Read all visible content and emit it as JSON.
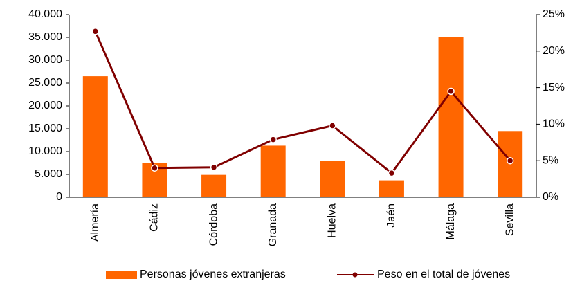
{
  "chart_data": {
    "type": "bar",
    "categories": [
      "Almería",
      "Cádiz",
      "Córdoba",
      "Granada",
      "Huelva",
      "Jaén",
      "Málaga",
      "Sevilla"
    ],
    "series": [
      {
        "name": "Personas jóvenes extranjeras",
        "color": "#ff6600",
        "type": "bar",
        "values": [
          26500,
          7500,
          4900,
          11300,
          8000,
          3700,
          35000,
          14500
        ]
      },
      {
        "name": "Peso en el total de jóvenes",
        "color": "#800000",
        "type": "line",
        "axis": "y2",
        "values": [
          22.7,
          4.0,
          4.1,
          7.9,
          9.8,
          3.3,
          14.5,
          5.0
        ]
      }
    ],
    "ylim": [
      0,
      40000
    ],
    "yticks": [
      0,
      {
        "value": 5000,
        "label": "5.000"
      },
      {
        "value": 10000,
        "label": "10.000"
      },
      {
        "value": 15000,
        "label": "15.000"
      },
      {
        "value": 20000,
        "label": "20.000"
      },
      {
        "value": 25000,
        "label": "25.000"
      },
      {
        "value": 30000,
        "label": "30.000"
      },
      {
        "value": 35000,
        "label": "35.000"
      },
      {
        "value": 40000,
        "label": "40.000"
      }
    ],
    "y2lim": [
      0,
      25
    ],
    "y2ticks": [
      {
        "value": 0,
        "label": "0%"
      },
      {
        "value": 5,
        "label": "5%"
      },
      {
        "value": 10,
        "label": "10%"
      },
      {
        "value": 15,
        "label": "15%"
      },
      {
        "value": 20,
        "label": "20%"
      },
      {
        "value": 25,
        "label": "25%"
      }
    ],
    "grid": false,
    "legend": "bottom"
  }
}
